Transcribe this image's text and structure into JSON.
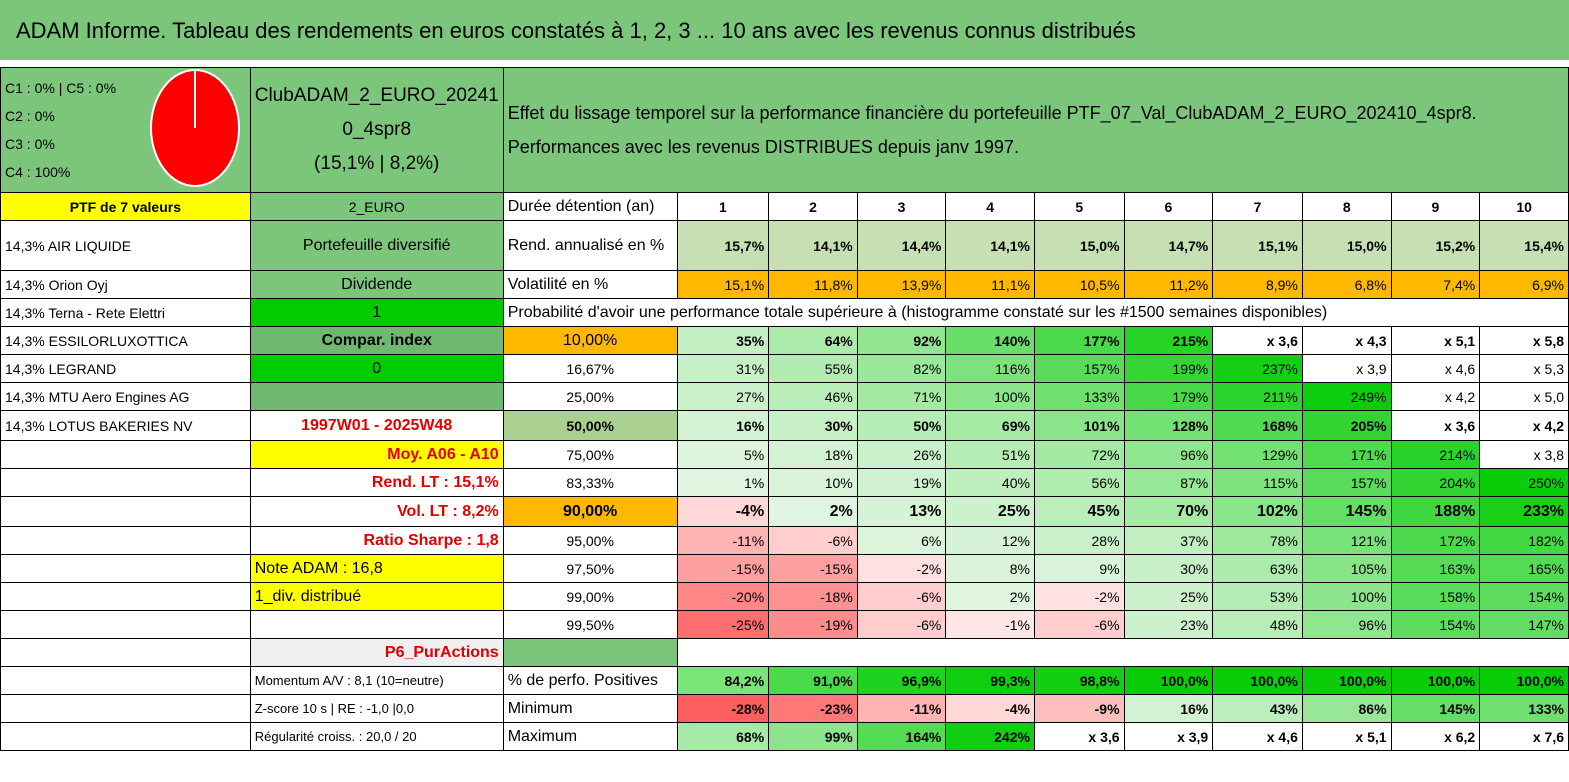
{
  "title": "ADAM Informe. Tableau des rendements en euros constatés à 1, 2, 3 ... 10 ans avec les revenus connus distribués",
  "alloc": [
    "C1 : 0% | C5 : 0%",
    "C2 : 0%",
    "C3 : 0%",
    "C4 : 100%"
  ],
  "pie_color": "#ff0000",
  "club": {
    "line1": "ClubADAM_2_EURO_20241",
    "line2": "0_4spr8",
    "line3": "(15,1% | 8,2%)"
  },
  "description": {
    "line1": "Effet du lissage temporel sur la performance financière du portefeuille PTF_07_Val_ClubADAM_2_EURO_202410_4spr8.",
    "line2": "Performances avec les revenus DISTRIBUES depuis janv 1997."
  },
  "ptf_label": "PTF de 7 valeurs",
  "euro_label": "2_EURO",
  "duree_label": "Durée détention (an)",
  "years": [
    "1",
    "2",
    "3",
    "4",
    "5",
    "6",
    "7",
    "8",
    "9",
    "10"
  ],
  "holdings": [
    "14,3% AIR LIQUIDE",
    "14,3% Orion Oyj",
    "14,3% Terna - Rete Elettri",
    "14,3% ESSILORLUXOTTICA",
    "14,3% LEGRAND",
    "14,3% MTU Aero Engines AG",
    "14,3% LOTUS BAKERIES NV"
  ],
  "mid": {
    "portefeuille": "Portefeuille diversifié",
    "dividende": "Dividende",
    "one": "1",
    "compar": "Compar. index",
    "zero": "0",
    "period": "1997W01 - 2025W48",
    "moy": "Moy. A06 - A10",
    "rend_lt": "Rend. LT : 15,1%",
    "vol_lt": "Vol. LT : 8,2%",
    "sharpe": "Ratio Sharpe : 1,8",
    "note": "Note ADAM : 16,8",
    "div": "1_div. distribué",
    "p6": "P6_PurActions",
    "momentum": "Momentum A/V : 8,1 (10=neutre)",
    "zscore": "Z-score 10 s | RE : -1,0 |0,0",
    "regularite": "Régularité croiss. : 20,0 / 20"
  },
  "rend": {
    "label": "Rend. annualisé en %",
    "values": [
      "15,7%",
      "14,1%",
      "14,4%",
      "14,1%",
      "15,0%",
      "14,7%",
      "15,1%",
      "15,0%",
      "15,2%",
      "15,4%"
    ]
  },
  "vol": {
    "label": "Volatilité en %",
    "values": [
      "15,1%",
      "11,8%",
      "13,9%",
      "11,1%",
      "10,5%",
      "11,2%",
      "8,9%",
      "6,8%",
      "7,4%",
      "6,9%"
    ]
  },
  "prob_label": "Probabilité d'avoir une performance totale supérieure à (histogramme constaté sur les #1500 semaines disponibles)",
  "prob_rows": [
    {
      "p": "10,00%",
      "values": [
        "35%",
        "64%",
        "92%",
        "140%",
        "177%",
        "215%",
        "x 3,6",
        "x 4,3",
        "x 5,1",
        "x 5,8"
      ]
    },
    {
      "p": "16,67%",
      "values": [
        "31%",
        "55%",
        "82%",
        "116%",
        "157%",
        "199%",
        "237%",
        "x 3,9",
        "x 4,6",
        "x 5,3"
      ]
    },
    {
      "p": "25,00%",
      "values": [
        "27%",
        "46%",
        "71%",
        "100%",
        "133%",
        "179%",
        "211%",
        "249%",
        "x 4,2",
        "x 5,0"
      ]
    },
    {
      "p": "50,00%",
      "values": [
        "16%",
        "30%",
        "50%",
        "69%",
        "101%",
        "128%",
        "168%",
        "205%",
        "x 3,6",
        "x 4,2"
      ]
    },
    {
      "p": "75,00%",
      "values": [
        "5%",
        "18%",
        "26%",
        "51%",
        "72%",
        "96%",
        "129%",
        "171%",
        "214%",
        "x 3,8"
      ]
    },
    {
      "p": "83,33%",
      "values": [
        "1%",
        "10%",
        "19%",
        "40%",
        "56%",
        "87%",
        "115%",
        "157%",
        "204%",
        "250%"
      ]
    },
    {
      "p": "90,00%",
      "values": [
        "-4%",
        "2%",
        "13%",
        "25%",
        "45%",
        "70%",
        "102%",
        "145%",
        "188%",
        "233%"
      ]
    },
    {
      "p": "95,00%",
      "values": [
        "-11%",
        "-6%",
        "6%",
        "12%",
        "28%",
        "37%",
        "78%",
        "121%",
        "172%",
        "182%"
      ]
    },
    {
      "p": "97,50%",
      "values": [
        "-15%",
        "-15%",
        "-2%",
        "8%",
        "9%",
        "30%",
        "63%",
        "105%",
        "163%",
        "165%"
      ]
    },
    {
      "p": "99,00%",
      "values": [
        "-20%",
        "-18%",
        "-6%",
        "2%",
        "-2%",
        "25%",
        "53%",
        "100%",
        "158%",
        "154%"
      ]
    },
    {
      "p": "99,50%",
      "values": [
        "-25%",
        "-19%",
        "-6%",
        "-1%",
        "-6%",
        "23%",
        "48%",
        "96%",
        "154%",
        "147%"
      ]
    }
  ],
  "positives": {
    "label": "% de perfo. Positives",
    "values": [
      "84,2%",
      "91,0%",
      "96,9%",
      "99,3%",
      "98,8%",
      "100,0%",
      "100,0%",
      "100,0%",
      "100,0%",
      "100,0%"
    ]
  },
  "minimum": {
    "label": "Minimum",
    "values": [
      "-28%",
      "-23%",
      "-11%",
      "-4%",
      "-9%",
      "16%",
      "43%",
      "86%",
      "145%",
      "133%"
    ]
  },
  "maximum": {
    "label": "Maximum",
    "values": [
      "68%",
      "99%",
      "164%",
      "242%",
      "x 3,6",
      "x 3,9",
      "x 4,6",
      "x 5,1",
      "x 6,2",
      "x 7,6"
    ]
  }
}
